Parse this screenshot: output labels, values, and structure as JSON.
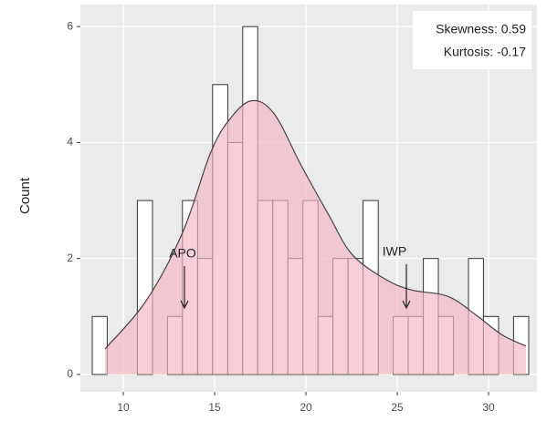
{
  "chart_data": {
    "type": "histogram",
    "y_label": "Count",
    "annotations": [
      "Skewness: 0.59",
      "Kurtosis: -0.17",
      "APO",
      "IWP"
    ],
    "bins": [
      8.3,
      9.12,
      9.95,
      10.77,
      11.6,
      12.42,
      13.24,
      14.07,
      14.89,
      15.72,
      16.54,
      17.36,
      18.19,
      19.01,
      19.84,
      20.66,
      21.48,
      22.31,
      23.13,
      23.96,
      24.78,
      25.6,
      26.43,
      27.25,
      28.08,
      28.9,
      29.72,
      30.55,
      31.37,
      32.2
    ],
    "values": [
      1,
      0,
      0,
      3,
      0,
      1,
      3,
      2,
      5,
      4,
      6,
      3,
      3,
      2,
      3,
      1,
      2,
      2,
      3,
      0,
      1,
      1,
      2,
      1,
      0,
      2,
      1,
      0,
      1
    ],
    "color": "#ffffff",
    "density": {
      "x": [
        9,
        11.25,
        13.25,
        14.75,
        15.75,
        17,
        18.25,
        19.75,
        21.25,
        22.5,
        24.25,
        25.75,
        27.75,
        29.25,
        30.75,
        32.05
      ],
      "values": [
        0.44,
        1.27,
        2.45,
        3.8,
        4.37,
        4.72,
        4.5,
        3.6,
        2.75,
        2.08,
        1.66,
        1.46,
        1.35,
        1.04,
        0.68,
        0.49
      ],
      "color": "#f4b6c2"
    },
    "xlim": [
      7.65,
      32.65
    ],
    "ylim": [
      -0.3,
      6.38
    ],
    "xticks": [
      10,
      15,
      20,
      25,
      30
    ],
    "yticks": [
      0,
      2,
      4,
      6
    ],
    "grid": true
  }
}
